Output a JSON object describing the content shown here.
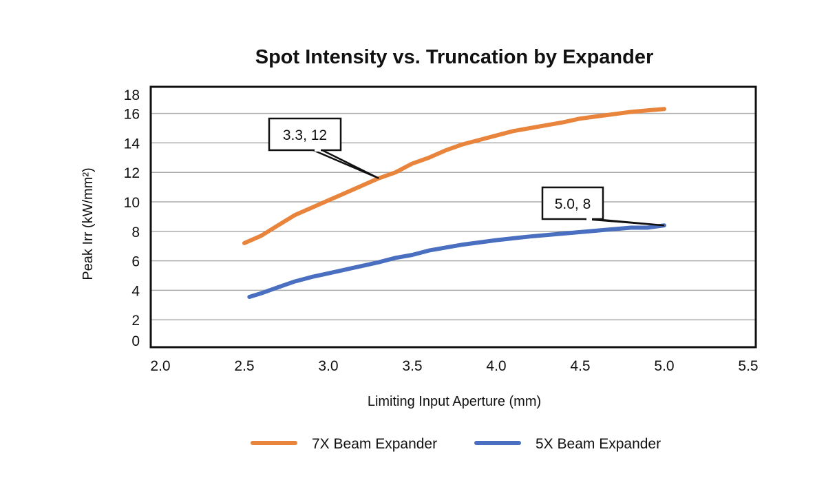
{
  "chart_data": {
    "type": "line",
    "title": "Spot Intensity vs. Truncation by Expander",
    "xlabel": "Limiting Input Aperture (mm)",
    "ylabel": "Peak Irr (kW/mm²)",
    "xlim": [
      2.0,
      5.5
    ],
    "ylim": [
      0,
      18
    ],
    "xticks": [
      "2.0",
      "2.5",
      "3.0",
      "3.5",
      "4.0",
      "4.5",
      "5.0",
      "5.5"
    ],
    "yticks": [
      "0",
      "2",
      "4",
      "6",
      "8",
      "10",
      "12",
      "14",
      "16",
      "18"
    ],
    "grid": "horizontal",
    "legend": "bottom",
    "series": [
      {
        "name": "7X Beam Expander",
        "color": "#E8843C",
        "x": [
          2.5,
          2.6,
          2.7,
          2.8,
          2.9,
          3.0,
          3.1,
          3.2,
          3.3,
          3.4,
          3.5,
          3.6,
          3.7,
          3.8,
          3.9,
          4.0,
          4.1,
          4.2,
          4.3,
          4.4,
          4.5,
          4.6,
          4.7,
          4.8,
          4.9,
          5.0
        ],
        "y": [
          7.2,
          7.7,
          8.4,
          9.1,
          9.6,
          10.1,
          10.6,
          11.1,
          11.6,
          12.0,
          12.6,
          13.0,
          13.5,
          13.9,
          14.2,
          14.5,
          14.8,
          15.0,
          15.2,
          15.4,
          15.65,
          15.8,
          15.95,
          16.1,
          16.2,
          16.3
        ]
      },
      {
        "name": "5X Beam Expander",
        "color": "#4A6FC0",
        "x": [
          2.53,
          2.6,
          2.7,
          2.8,
          2.9,
          3.0,
          3.1,
          3.2,
          3.3,
          3.4,
          3.5,
          3.6,
          3.7,
          3.8,
          3.9,
          4.0,
          4.2,
          4.4,
          4.6,
          4.8,
          4.9,
          5.0
        ],
        "y": [
          3.55,
          3.8,
          4.2,
          4.6,
          4.9,
          5.15,
          5.4,
          5.65,
          5.9,
          6.2,
          6.4,
          6.7,
          6.9,
          7.1,
          7.25,
          7.4,
          7.65,
          7.85,
          8.05,
          8.25,
          8.25,
          8.4
        ]
      }
    ],
    "annotations": [
      {
        "text": "3.3, 12",
        "x": 3.3,
        "y": 11.6
      },
      {
        "text": "5.0, 8",
        "x": 5.0,
        "y": 8.4
      }
    ]
  }
}
